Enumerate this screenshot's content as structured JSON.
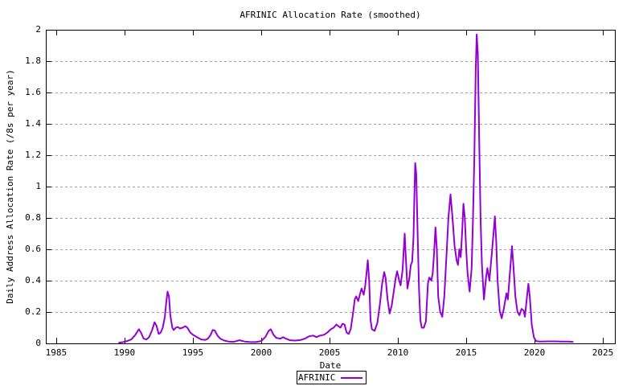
{
  "colors": {
    "line": "#9400d3",
    "grid": "#a0a0a0",
    "axis": "#000000",
    "background": "#ffffff",
    "text": "#000000"
  },
  "legend": {
    "entries": [
      {
        "label": "AFRINIC",
        "color": "#9400d3"
      }
    ],
    "position": "bottom-center"
  },
  "chart_data": {
    "type": "line",
    "title": "AFRINIC Allocation Rate (smoothed)",
    "xlabel": "Date",
    "ylabel": "Daily Address Allocation Rate (/8s per year)",
    "xlim": [
      1984.24,
      2025.88
    ],
    "ylim": [
      0,
      2
    ],
    "grid": "horizontal-dashed",
    "legend_position": "bottom-center",
    "xticks": [
      {
        "value": 1985,
        "label": "1985"
      },
      {
        "value": 1990,
        "label": "1990"
      },
      {
        "value": 1995,
        "label": "1995"
      },
      {
        "value": 2000,
        "label": "2000"
      },
      {
        "value": 2005,
        "label": "2005"
      },
      {
        "value": 2010,
        "label": "2010"
      },
      {
        "value": 2015,
        "label": "2015"
      },
      {
        "value": 2020,
        "label": "2020"
      },
      {
        "value": 2025,
        "label": "2025"
      }
    ],
    "yticks": [
      {
        "value": 0,
        "label": "0"
      },
      {
        "value": 0.2,
        "label": "0.2"
      },
      {
        "value": 0.4,
        "label": "0.4"
      },
      {
        "value": 0.6,
        "label": "0.6"
      },
      {
        "value": 0.8,
        "label": "0.8"
      },
      {
        "value": 1,
        "label": "1"
      },
      {
        "value": 1.2,
        "label": "1.2"
      },
      {
        "value": 1.4,
        "label": "1.4"
      },
      {
        "value": 1.6,
        "label": "1.6"
      },
      {
        "value": 1.8,
        "label": "1.8"
      },
      {
        "value": 2,
        "label": "2"
      }
    ],
    "series": [
      {
        "name": "AFRINIC",
        "x": [
          1989.6,
          1989.9,
          1990.2,
          1990.5,
          1990.75,
          1991.05,
          1991.2,
          1991.4,
          1991.6,
          1991.8,
          1992.0,
          1992.2,
          1992.35,
          1992.5,
          1992.65,
          1992.8,
          1992.95,
          1993.05,
          1993.15,
          1993.25,
          1993.35,
          1993.5,
          1993.6,
          1993.75,
          1993.9,
          1994.05,
          1994.25,
          1994.45,
          1994.6,
          1994.8,
          1995.0,
          1995.3,
          1995.6,
          1995.9,
          1996.1,
          1996.3,
          1996.45,
          1996.6,
          1996.8,
          1997.0,
          1997.3,
          1997.6,
          1998.0,
          1998.4,
          1998.8,
          1999.2,
          1999.6,
          2000.0,
          2000.3,
          2000.55,
          2000.7,
          2000.9,
          2001.1,
          2001.4,
          2001.6,
          2001.8,
          2002.1,
          2002.5,
          2002.9,
          2003.2,
          2003.5,
          2003.8,
          2004.05,
          2004.3,
          2004.6,
          2004.85,
          2005.1,
          2005.3,
          2005.5,
          2005.65,
          2005.8,
          2005.95,
          2006.1,
          2006.25,
          2006.4,
          2006.55,
          2006.7,
          2006.85,
          2006.95,
          2007.1,
          2007.25,
          2007.35,
          2007.5,
          2007.6,
          2007.7,
          2007.8,
          2007.9,
          2008.0,
          2008.1,
          2008.3,
          2008.5,
          2008.7,
          2008.85,
          2009.0,
          2009.1,
          2009.25,
          2009.4,
          2009.55,
          2009.7,
          2009.85,
          2009.95,
          2010.1,
          2010.2,
          2010.35,
          2010.5,
          2010.6,
          2010.7,
          2010.85,
          2010.95,
          2011.05,
          2011.15,
          2011.2,
          2011.27,
          2011.35,
          2011.45,
          2011.55,
          2011.65,
          2011.75,
          2011.9,
          2012.05,
          2012.2,
          2012.3,
          2012.45,
          2012.55,
          2012.65,
          2012.75,
          2012.85,
          2012.95,
          2013.1,
          2013.25,
          2013.4,
          2013.55,
          2013.7,
          2013.85,
          2014.0,
          2014.15,
          2014.3,
          2014.4,
          2014.5,
          2014.6,
          2014.7,
          2014.8,
          2014.9,
          2015.0,
          2015.1,
          2015.25,
          2015.4,
          2015.5,
          2015.6,
          2015.7,
          2015.77,
          2015.85,
          2015.95,
          2016.05,
          2016.15,
          2016.3,
          2016.45,
          2016.55,
          2016.7,
          2016.85,
          2017.0,
          2017.1,
          2017.2,
          2017.3,
          2017.45,
          2017.6,
          2017.75,
          2017.95,
          2018.05,
          2018.2,
          2018.35,
          2018.45,
          2018.6,
          2018.75,
          2018.9,
          2019.05,
          2019.2,
          2019.3,
          2019.45,
          2019.55,
          2019.65,
          2019.8,
          2019.95,
          2020.1,
          2020.4,
          2021.0,
          2021.5,
          2022.0,
          2022.5,
          2022.8
        ],
        "y": [
          0.004,
          0.008,
          0.015,
          0.025,
          0.05,
          0.09,
          0.07,
          0.03,
          0.025,
          0.04,
          0.08,
          0.135,
          0.11,
          0.06,
          0.07,
          0.1,
          0.17,
          0.26,
          0.33,
          0.3,
          0.18,
          0.1,
          0.085,
          0.1,
          0.105,
          0.095,
          0.1,
          0.11,
          0.1,
          0.07,
          0.055,
          0.04,
          0.025,
          0.022,
          0.03,
          0.055,
          0.085,
          0.082,
          0.05,
          0.03,
          0.018,
          0.012,
          0.01,
          0.02,
          0.012,
          0.008,
          0.008,
          0.015,
          0.04,
          0.08,
          0.09,
          0.055,
          0.035,
          0.03,
          0.04,
          0.03,
          0.02,
          0.018,
          0.022,
          0.03,
          0.045,
          0.05,
          0.04,
          0.05,
          0.055,
          0.07,
          0.09,
          0.1,
          0.12,
          0.11,
          0.1,
          0.125,
          0.12,
          0.07,
          0.06,
          0.09,
          0.18,
          0.28,
          0.3,
          0.27,
          0.32,
          0.35,
          0.31,
          0.36,
          0.44,
          0.53,
          0.4,
          0.15,
          0.09,
          0.08,
          0.13,
          0.26,
          0.38,
          0.455,
          0.42,
          0.28,
          0.19,
          0.24,
          0.33,
          0.42,
          0.46,
          0.4,
          0.37,
          0.47,
          0.7,
          0.52,
          0.35,
          0.42,
          0.5,
          0.52,
          0.68,
          0.9,
          1.15,
          1.08,
          0.7,
          0.35,
          0.15,
          0.1,
          0.1,
          0.14,
          0.38,
          0.42,
          0.4,
          0.45,
          0.58,
          0.74,
          0.6,
          0.3,
          0.2,
          0.17,
          0.3,
          0.55,
          0.8,
          0.95,
          0.8,
          0.62,
          0.53,
          0.5,
          0.6,
          0.55,
          0.7,
          0.89,
          0.8,
          0.6,
          0.45,
          0.33,
          0.48,
          0.8,
          1.2,
          1.75,
          1.97,
          1.85,
          1.3,
          0.8,
          0.5,
          0.28,
          0.42,
          0.48,
          0.4,
          0.55,
          0.7,
          0.81,
          0.65,
          0.4,
          0.21,
          0.16,
          0.22,
          0.32,
          0.28,
          0.45,
          0.62,
          0.5,
          0.3,
          0.2,
          0.18,
          0.22,
          0.21,
          0.17,
          0.3,
          0.38,
          0.3,
          0.12,
          0.04,
          0.015,
          0.012,
          0.013,
          0.013,
          0.012,
          0.012,
          0.01
        ]
      }
    ]
  }
}
